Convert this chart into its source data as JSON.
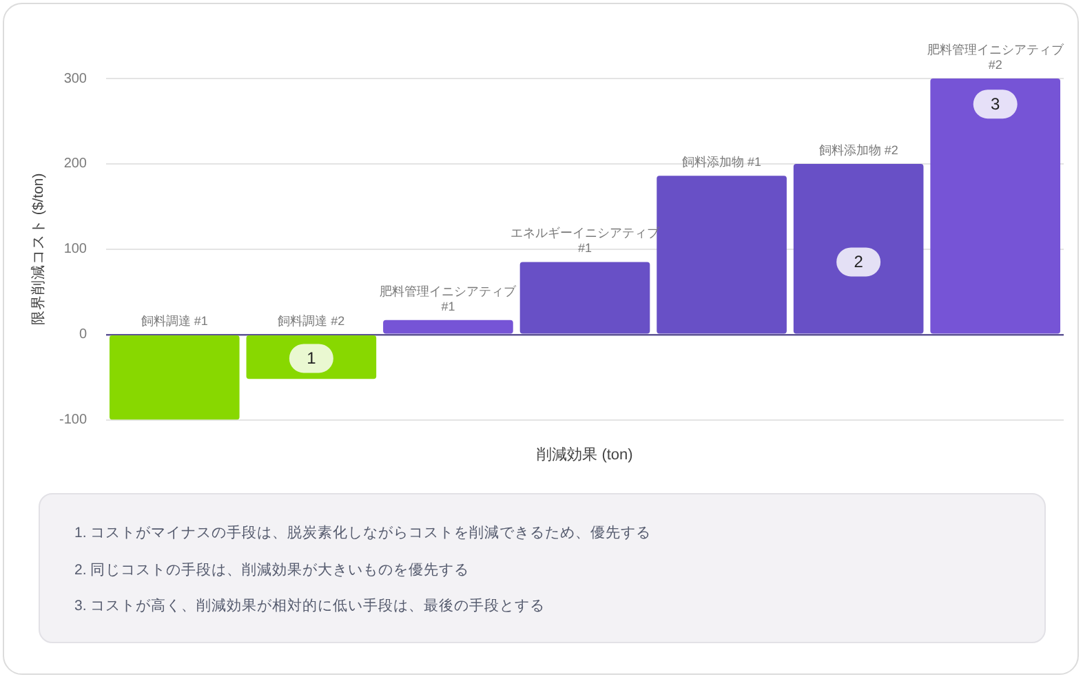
{
  "chart_data": {
    "type": "bar",
    "xlabel": "削減効果 (ton)",
    "ylabel": "限界削減コスト ($/ton)",
    "categories": [
      "飼料調達 #1",
      "飼料調達 #2",
      "肥料管理イニシアティブ #1",
      "エネルギーイニシアティブ #1",
      "飼料添加物 #1",
      "飼料添加物 #2",
      "肥料管理イニシアティブ #2"
    ],
    "values": [
      -100,
      -52,
      17,
      85,
      186,
      200,
      300
    ],
    "colors": [
      "#88d800",
      "#88d800",
      "#7654d6",
      "#6850c6",
      "#6850c6",
      "#6850c6",
      "#7654d6"
    ],
    "ylim": [
      -100,
      300
    ],
    "yticks": [
      -100,
      0,
      100,
      200,
      300
    ],
    "grid": "y",
    "annotations": [
      {
        "text": "1",
        "x": "飼料調達 #2",
        "y": -28
      },
      {
        "text": "2",
        "x": "飼料添加物 #2",
        "y": 85
      },
      {
        "text": "3",
        "x": "肥料管理イニシアティブ #2",
        "y": 270
      },
      "1. コストがマイナスの手段は、脱炭素化しながらコストを削減できるため、優先する",
      "2. 同じコストの手段は、削減効果が大きいものを優先する",
      "3. コストが高く、削減効果が相対的に低い手段は、最後の手段とする"
    ]
  }
}
